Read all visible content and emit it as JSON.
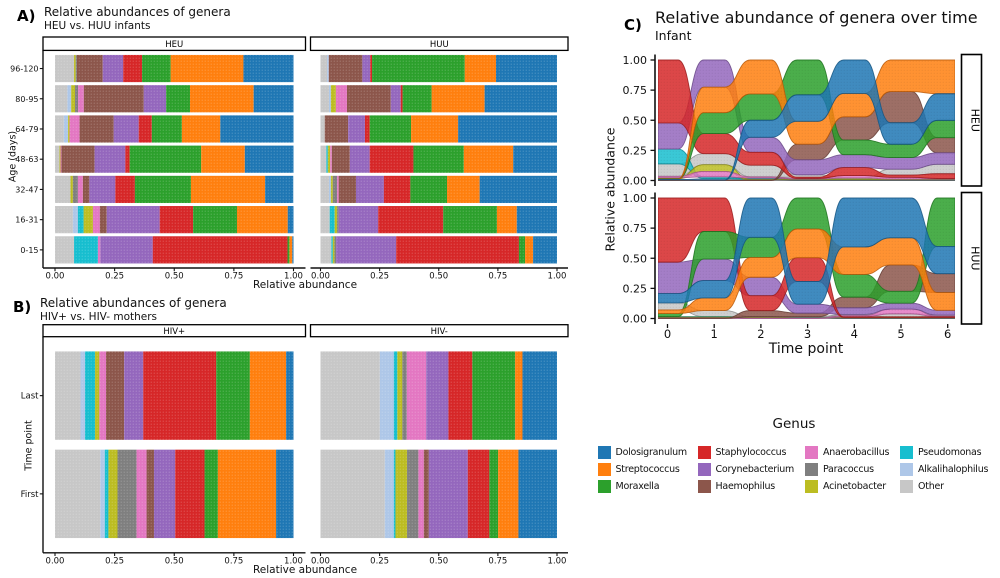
{
  "genera": [
    {
      "name": "Dolosigranulum",
      "color": "#1f77b4"
    },
    {
      "name": "Streptococcus",
      "color": "#ff7f0e"
    },
    {
      "name": "Moraxella",
      "color": "#2ca02c"
    },
    {
      "name": "Staphylococcus",
      "color": "#d62728"
    },
    {
      "name": "Corynebacterium",
      "color": "#9467bd"
    },
    {
      "name": "Haemophilus",
      "color": "#8c564b"
    },
    {
      "name": "Anaerobacillus",
      "color": "#e377c2"
    },
    {
      "name": "Paracoccus",
      "color": "#7f7f7f"
    },
    {
      "name": "Acinetobacter",
      "color": "#bcbd22"
    },
    {
      "name": "Pseudomonas",
      "color": "#17becf"
    },
    {
      "name": "Alkalihalophilus",
      "color": "#aec7e8"
    },
    {
      "name": "Other",
      "color": "#c7c7c7"
    }
  ],
  "stack_order": [
    "Other",
    "Alkalihalophilus",
    "Pseudomonas",
    "Acinetobacter",
    "Paracoccus",
    "Anaerobacillus",
    "Haemophilus",
    "Corynebacterium",
    "Staphylococcus",
    "Moraxella",
    "Streptococcus",
    "Dolosigranulum"
  ],
  "legend": {
    "title": "Genus",
    "columns": [
      [
        "Dolosigranulum",
        "Streptococcus",
        "Moraxella"
      ],
      [
        "Staphylococcus",
        "Corynebacterium",
        "Haemophilus"
      ],
      [
        "Anaerobacillus",
        "Paracoccus",
        "Acinetobacter"
      ],
      [
        "Pseudomonas",
        "Alkalihalophilus",
        "Other"
      ]
    ]
  },
  "panel_a": {
    "label": "A)",
    "title": "Relative abundances of genera",
    "subtitle": "HEU vs. HUU infants",
    "xlabel": "Relative abundance",
    "ylabel": "Age (days)"
  },
  "panel_b": {
    "label": "B)",
    "title": "Relative abundances of genera",
    "subtitle": "HIV+ vs. HIV- mothers",
    "xlabel": "Relative abundance",
    "ylabel": "Time point"
  },
  "panel_c": {
    "label": "C)",
    "title": "Relative abundance of genera over time",
    "subtitle": "Infant",
    "xlabel": "Time point",
    "ylabel": "Relative abundance"
  },
  "chart_data": [
    {
      "id": "A",
      "type": "bar",
      "orientation": "horizontal_stacked",
      "title": "Relative abundances of genera",
      "subtitle": "HEU vs. HUU infants",
      "xlabel": "Relative abundance",
      "ylabel": "Age (days)",
      "xlim": [
        0,
        1
      ],
      "xticks": [
        "0.00",
        "0.25",
        "0.50",
        "0.75",
        "1.00"
      ],
      "categories": [
        "96-120",
        "80-95",
        "64-79",
        "48-63",
        "32-47",
        "16-31",
        "0-15"
      ],
      "facets": [
        {
          "name": "HEU",
          "series": {
            "Other": [
              0.08,
              0.052,
              0.037,
              0.019,
              0.065,
              0.075,
              0.08
            ],
            "Alkalihalophilus": [
              0,
              0.016,
              0.018,
              0,
              0,
              0.021,
              0
            ],
            "Pseudomonas": [
              0,
              0,
              0,
              0,
              0,
              0.024,
              0.1
            ],
            "Acinetobacter": [
              0.007,
              0.016,
              0.006,
              0.004,
              0.01,
              0.039,
              0
            ],
            "Paracoccus": [
              0.005,
              0.013,
              0,
              0,
              0.021,
              0,
              0
            ],
            "Anaerobacillus": [
              0,
              0.024,
              0.042,
              0.004,
              0.021,
              0.029,
              0.01
            ],
            "Haemophilus": [
              0.108,
              0.251,
              0.143,
              0.139,
              0.027,
              0.029,
              0
            ],
            "Corynebacterium": [
              0.086,
              0.094,
              0.105,
              0.129,
              0.109,
              0.222,
              0.22
            ],
            "Staphylococcus": [
              0.079,
              0,
              0.055,
              0.018,
              0.082,
              0.14,
              0.565
            ],
            "Moraxella": [
              0.12,
              0.1,
              0.126,
              0.3,
              0.235,
              0.184,
              0.008
            ],
            "Streptococcus": [
              0.305,
              0.267,
              0.161,
              0.183,
              0.311,
              0.213,
              0.012
            ],
            "Dolosigranulum": [
              0.21,
              0.167,
              0.307,
              0.204,
              0.118,
              0.024,
              0.005
            ]
          }
        },
        {
          "name": "HUU",
          "series": {
            "Other": [
              0.028,
              0.036,
              0.018,
              0.025,
              0.036,
              0.039,
              0.046
            ],
            "Alkalihalophilus": [
              0.007,
              0.008,
              0,
              0,
              0.008,
              0,
              0
            ],
            "Pseudomonas": [
              0,
              0,
              0,
              0.006,
              0,
              0.021,
              0.006
            ],
            "Acinetobacter": [
              0,
              0.021,
              0,
              0.01,
              0.008,
              0.01,
              0.007
            ],
            "Paracoccus": [
              0,
              0,
              0,
              0,
              0.018,
              0.007,
              0.007
            ],
            "Anaerobacillus": [
              0,
              0.047,
              0,
              0.007,
              0.007,
              0,
              0
            ],
            "Haemophilus": [
              0.142,
              0.185,
              0.099,
              0.076,
              0.073,
              0,
              0
            ],
            "Corynebacterium": [
              0.033,
              0.042,
              0.071,
              0.084,
              0.118,
              0.167,
              0.254
            ],
            "Staphylococcus": [
              0.008,
              0.008,
              0.02,
              0.185,
              0.112,
              0.275,
              0.519
            ],
            "Moraxella": [
              0.392,
              0.123,
              0.175,
              0.213,
              0.155,
              0.227,
              0.026
            ],
            "Streptococcus": [
              0.132,
              0.224,
              0.199,
              0.209,
              0.138,
              0.084,
              0.034
            ],
            "Dolosigranulum": [
              0.258,
              0.306,
              0.418,
              0.185,
              0.327,
              0.17,
              0.101
            ]
          }
        }
      ]
    },
    {
      "id": "B",
      "type": "bar",
      "orientation": "horizontal_stacked",
      "title": "Relative abundances of genera",
      "subtitle": "HIV+ vs. HIV- mothers",
      "xlabel": "Relative abundance",
      "ylabel": "Time point",
      "xlim": [
        0,
        1
      ],
      "xticks": [
        "0.00",
        "0.25",
        "0.50",
        "0.75",
        "1.00"
      ],
      "categories": [
        "Last",
        "First"
      ],
      "facets": [
        {
          "name": "HIV+",
          "series": {
            "Other": [
              0.107,
              0.19
            ],
            "Alkalihalophilus": [
              0.019,
              0.019
            ],
            "Pseudomonas": [
              0.042,
              0.015
            ],
            "Acinetobacter": [
              0.018,
              0.038
            ],
            "Paracoccus": [
              0,
              0.08
            ],
            "Anaerobacillus": [
              0.028,
              0.042
            ],
            "Haemophilus": [
              0.076,
              0.031
            ],
            "Corynebacterium": [
              0.08,
              0.089
            ],
            "Staphylococcus": [
              0.306,
              0.123
            ],
            "Moraxella": [
              0.141,
              0.056
            ],
            "Streptococcus": [
              0.152,
              0.244
            ],
            "Dolosigranulum": [
              0.031,
              0.073
            ]
          }
        },
        {
          "name": "HIV-",
          "series": {
            "Other": [
              0.251,
              0.272
            ],
            "Alkalihalophilus": [
              0.059,
              0.038
            ],
            "Pseudomonas": [
              0.015,
              0.007
            ],
            "Acinetobacter": [
              0.021,
              0.049
            ],
            "Paracoccus": [
              0.019,
              0.048
            ],
            "Anaerobacillus": [
              0.082,
              0.023
            ],
            "Haemophilus": [
              0,
              0.021
            ],
            "Corynebacterium": [
              0.094,
              0.165
            ],
            "Staphylococcus": [
              0.101,
              0.091
            ],
            "Moraxella": [
              0.181,
              0.037
            ],
            "Streptococcus": [
              0.031,
              0.086
            ],
            "Dolosigranulum": [
              0.146,
              0.163
            ]
          }
        }
      ]
    },
    {
      "id": "C",
      "type": "alluvial",
      "title": "Relative abundance of genera over time",
      "subtitle": "Infant",
      "xlabel": "Time point",
      "ylabel": "Relative abundance",
      "x": [
        0,
        1,
        2,
        3,
        4,
        5,
        6
      ],
      "xticks": [
        "0",
        "1",
        "2",
        "3",
        "4",
        "5",
        "6"
      ],
      "ylim": [
        0,
        1
      ],
      "yticks": [
        "1.00",
        "0.75",
        "0.50",
        "0.25",
        "0.00"
      ],
      "facets": [
        {
          "name": "HEU",
          "series": {
            "Dolosigranulum": [
              0.003,
              0.003,
              0.146,
              0.22,
              0.285,
              0.185,
              0.225
            ],
            "Streptococcus": [
              0.003,
              0.225,
              0.29,
              0.19,
              0.2,
              0.272,
              0.285
            ],
            "Moraxella": [
              0.003,
              0.185,
              0.225,
              0.29,
              0.125,
              0.115,
              0.146
            ],
            "Staphylococcus": [
              0.53,
              0.177,
              0.11,
              0.01,
              0.068,
              0.02,
              0.04
            ],
            "Corynebacterium": [
              0.22,
              0.24,
              0.128,
              0.125,
              0.11,
              0.1,
              0.097
            ],
            "Haemophilus": [
              0.002,
              0.002,
              0.002,
              0.13,
              0.198,
              0.268,
              0.128
            ],
            "Anaerobacillus": [
              0.012,
              0.048,
              0.01,
              0.005,
              0.02,
              0.015,
              0.005
            ],
            "Paracoccus": [
              0.002,
              0.002,
              0.002,
              0.002,
              0.002,
              0.002,
              0.002
            ],
            "Acinetobacter": [
              0.008,
              0.06,
              0.005,
              0.004,
              0.004,
              0.004,
              0.004
            ],
            "Pseudomonas": [
              0.125,
              0.015,
              0.006,
              0.003,
              0.003,
              0.003,
              0.003
            ],
            "Alkalihalophilus": [
              0.002,
              0.01,
              0.006,
              0.003,
              0.003,
              0.003,
              0.003
            ],
            "Other": [
              0.105,
              0.097,
              0.1,
              0.02,
              0.01,
              0.05,
              0.08
            ]
          }
        },
        {
          "name": "HUU",
          "series": {
            "Dolosigranulum": [
              0.077,
              0.145,
              0.33,
              0.19,
              0.41,
              0.335,
              0.23
            ],
            "Streptococcus": [
              0.03,
              0.106,
              0.165,
              0.24,
              0.23,
              0.228,
              0.15
            ],
            "Moraxella": [
              0.025,
              0.23,
              0.17,
              0.26,
              0.19,
              0.1,
              0.41
            ],
            "Staphylococcus": [
              0.53,
              0.28,
              0.125,
              0.2,
              0.005,
              0.005,
              0.005
            ],
            "Corynebacterium": [
              0.26,
              0.18,
              0.155,
              0.075,
              0.055,
              0.05,
              0.04
            ],
            "Haemophilus": [
              0.002,
              0.002,
              0.05,
              0.03,
              0.09,
              0.222,
              0.16
            ],
            "Anaerobacillus": [
              0.002,
              0.002,
              0.002,
              0.002,
              0.01,
              0.04,
              0.005
            ],
            "Paracoccus": [
              0.002,
              0.002,
              0.002,
              0.002,
              0.002,
              0.002,
              0.002
            ],
            "Acinetobacter": [
              0.004,
              0.004,
              0.003,
              0.002,
              0.003,
              0.003,
              0.003
            ],
            "Pseudomonas": [
              0.004,
              0.004,
              0.002,
              0.002,
              0.002,
              0.002,
              0.002
            ],
            "Alkalihalophilus": [
              0.002,
              0.002,
              0.002,
              0.002,
              0.002,
              0.002,
              0.002
            ],
            "Other": [
              0.058,
              0.05,
              0.005,
              0.005,
              0.01,
              0.025,
              0.01
            ]
          }
        }
      ]
    }
  ]
}
